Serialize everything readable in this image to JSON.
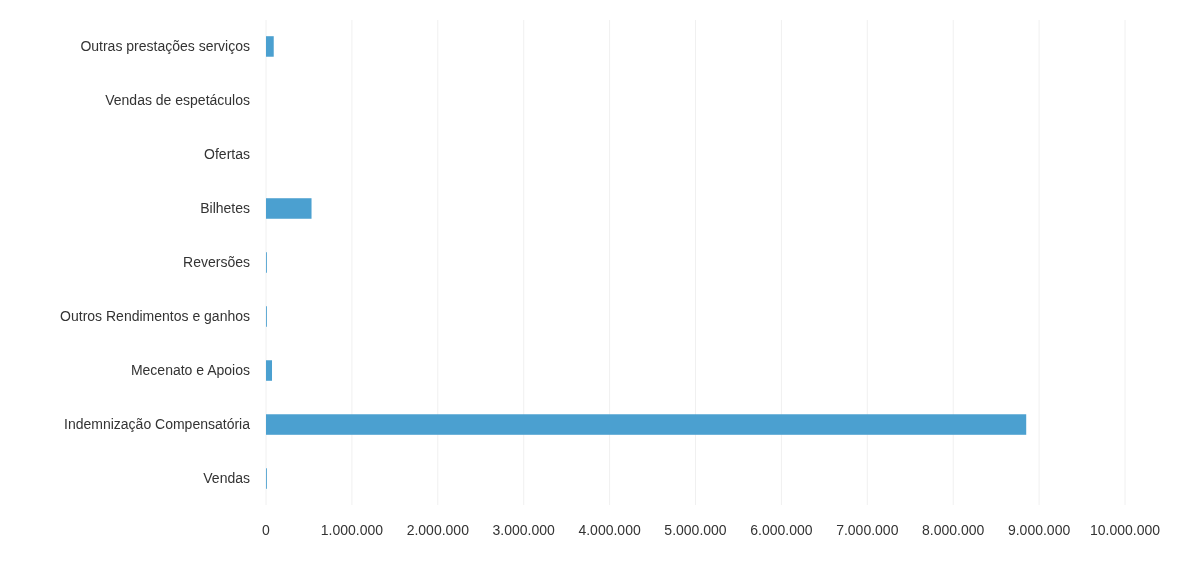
{
  "chart_data": {
    "type": "bar",
    "orientation": "horizontal",
    "categories": [
      "Outras prestações serviços",
      "Vendas de espetáculos",
      "Ofertas",
      "Bilhetes",
      "Reversões",
      "Outros Rendimentos e ganhos",
      "Mecenato e Apoios",
      "Indemnização Compensatória",
      "Vendas"
    ],
    "values": [
      90000,
      0,
      0,
      530000,
      10000,
      10000,
      70000,
      8850000,
      10000
    ],
    "color": "#4ba0d0",
    "xlim": [
      0,
      10000000
    ],
    "xticks": [
      0,
      {
        "value": 1000000,
        "label": "1.000.000"
      },
      {
        "value": 2000000,
        "label": "2.000.000"
      },
      {
        "value": 3000000,
        "label": "3.000.000"
      },
      {
        "value": 4000000,
        "label": "4.000.000"
      },
      {
        "value": 5000000,
        "label": "5.000.000"
      },
      {
        "value": 6000000,
        "label": "6.000.000"
      },
      {
        "value": 7000000,
        "label": "7.000.000"
      },
      {
        "value": 8000000,
        "label": "8.000.000"
      },
      {
        "value": 9000000,
        "label": "9.000.000"
      },
      {
        "value": 10000000,
        "label": "10.000.000"
      }
    ],
    "grid": "x"
  }
}
